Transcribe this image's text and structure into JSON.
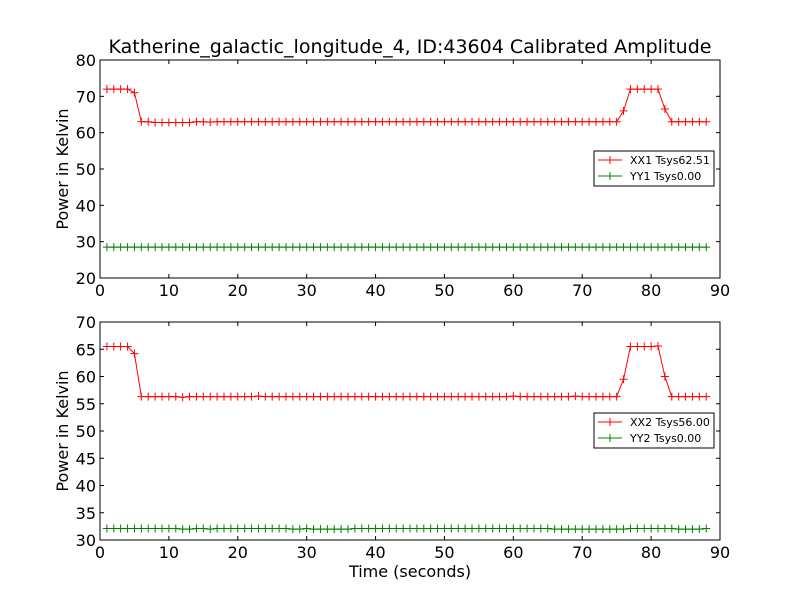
{
  "chart_data": [
    {
      "type": "line",
      "title": "Katherine_galactic_longitude_4, ID:43604 Calibrated Amplitude",
      "xlabel": "",
      "ylabel": "Power in Kelvin",
      "xlim": [
        0,
        90
      ],
      "ylim": [
        20,
        80
      ],
      "xticks": [
        0,
        10,
        20,
        30,
        40,
        50,
        60,
        70,
        80,
        90
      ],
      "yticks": [
        20,
        30,
        40,
        50,
        60,
        70,
        80
      ],
      "grid": false,
      "legend_position": "right",
      "series": [
        {
          "name": "XX1 Tsys62.51",
          "color": "#ff0000",
          "marker": "+",
          "x": [
            1,
            2,
            3,
            4,
            5,
            6,
            7,
            8,
            9,
            10,
            11,
            12,
            13,
            14,
            15,
            16,
            17,
            18,
            19,
            20,
            21,
            22,
            23,
            24,
            25,
            26,
            27,
            28,
            29,
            30,
            31,
            32,
            33,
            34,
            35,
            36,
            37,
            38,
            39,
            40,
            41,
            42,
            43,
            44,
            45,
            46,
            47,
            48,
            49,
            50,
            51,
            52,
            53,
            54,
            55,
            56,
            57,
            58,
            59,
            60,
            61,
            62,
            63,
            64,
            65,
            66,
            67,
            68,
            69,
            70,
            71,
            72,
            73,
            74,
            75,
            76,
            77,
            78,
            79,
            80,
            81,
            82,
            83,
            84,
            85,
            86,
            87,
            88
          ],
          "y": [
            72,
            72,
            72,
            72,
            71,
            63,
            63,
            62.8,
            62.8,
            62.8,
            62.8,
            62.8,
            62.8,
            63,
            63,
            62.9,
            63,
            63,
            63,
            63,
            63,
            63,
            63,
            63,
            63,
            63,
            63,
            63,
            63,
            63,
            63,
            63,
            63,
            63,
            63,
            63,
            63,
            63,
            63,
            63,
            63,
            63,
            63,
            63,
            63,
            63,
            63,
            63,
            63,
            63,
            63,
            63,
            63,
            63,
            63,
            63,
            63,
            63,
            63,
            63,
            63,
            63,
            63,
            63,
            63,
            63,
            63,
            63,
            63,
            63,
            63,
            63,
            63,
            63,
            63,
            66,
            72,
            72,
            72,
            72,
            72,
            66.5,
            63,
            63,
            63,
            63,
            63,
            63
          ]
        },
        {
          "name": "YY1 Tsys0.00",
          "color": "#008000",
          "marker": "+",
          "x": [
            1,
            2,
            3,
            4,
            5,
            6,
            7,
            8,
            9,
            10,
            11,
            12,
            13,
            14,
            15,
            16,
            17,
            18,
            19,
            20,
            21,
            22,
            23,
            24,
            25,
            26,
            27,
            28,
            29,
            30,
            31,
            32,
            33,
            34,
            35,
            36,
            37,
            38,
            39,
            40,
            41,
            42,
            43,
            44,
            45,
            46,
            47,
            48,
            49,
            50,
            51,
            52,
            53,
            54,
            55,
            56,
            57,
            58,
            59,
            60,
            61,
            62,
            63,
            64,
            65,
            66,
            67,
            68,
            69,
            70,
            71,
            72,
            73,
            74,
            75,
            76,
            77,
            78,
            79,
            80,
            81,
            82,
            83,
            84,
            85,
            86,
            87,
            88
          ],
          "y": [
            28.5,
            28.5,
            28.5,
            28.5,
            28.5,
            28.5,
            28.5,
            28.5,
            28.5,
            28.5,
            28.5,
            28.5,
            28.5,
            28.5,
            28.5,
            28.5,
            28.5,
            28.5,
            28.5,
            28.5,
            28.5,
            28.5,
            28.5,
            28.5,
            28.5,
            28.5,
            28.5,
            28.5,
            28.5,
            28.5,
            28.5,
            28.5,
            28.5,
            28.5,
            28.5,
            28.5,
            28.5,
            28.5,
            28.5,
            28.5,
            28.5,
            28.5,
            28.5,
            28.5,
            28.5,
            28.5,
            28.5,
            28.5,
            28.5,
            28.5,
            28.5,
            28.5,
            28.5,
            28.5,
            28.5,
            28.5,
            28.5,
            28.5,
            28.5,
            28.5,
            28.5,
            28.5,
            28.5,
            28.5,
            28.5,
            28.5,
            28.5,
            28.5,
            28.5,
            28.5,
            28.5,
            28.5,
            28.5,
            28.5,
            28.5,
            28.5,
            28.5,
            28.5,
            28.5,
            28.5,
            28.5,
            28.5,
            28.5,
            28.5,
            28.5,
            28.5,
            28.5,
            28.5
          ]
        }
      ]
    },
    {
      "type": "line",
      "title": "",
      "xlabel": "Time (seconds)",
      "ylabel": "Power in Kelvin",
      "xlim": [
        0,
        90
      ],
      "ylim": [
        30,
        70
      ],
      "xticks": [
        0,
        10,
        20,
        30,
        40,
        50,
        60,
        70,
        80,
        90
      ],
      "yticks": [
        30,
        35,
        40,
        45,
        50,
        55,
        60,
        65,
        70
      ],
      "grid": false,
      "legend_position": "right",
      "series": [
        {
          "name": "XX2 Tsys56.00",
          "color": "#ff0000",
          "marker": "+",
          "x": [
            1,
            2,
            3,
            4,
            5,
            6,
            7,
            8,
            9,
            10,
            11,
            12,
            13,
            14,
            15,
            16,
            17,
            18,
            19,
            20,
            21,
            22,
            23,
            24,
            25,
            26,
            27,
            28,
            29,
            30,
            31,
            32,
            33,
            34,
            35,
            36,
            37,
            38,
            39,
            40,
            41,
            42,
            43,
            44,
            45,
            46,
            47,
            48,
            49,
            50,
            51,
            52,
            53,
            54,
            55,
            56,
            57,
            58,
            59,
            60,
            61,
            62,
            63,
            64,
            65,
            66,
            67,
            68,
            69,
            70,
            71,
            72,
            73,
            74,
            75,
            76,
            77,
            78,
            79,
            80,
            81,
            82,
            83,
            84,
            85,
            86,
            87,
            88
          ],
          "y": [
            65.5,
            65.5,
            65.5,
            65.5,
            64.2,
            56.3,
            56.3,
            56.3,
            56.3,
            56.3,
            56.3,
            56.2,
            56.3,
            56.3,
            56.3,
            56.3,
            56.3,
            56.3,
            56.3,
            56.3,
            56.3,
            56.3,
            56.4,
            56.3,
            56.3,
            56.3,
            56.3,
            56.3,
            56.3,
            56.3,
            56.3,
            56.3,
            56.3,
            56.3,
            56.3,
            56.3,
            56.3,
            56.3,
            56.3,
            56.3,
            56.3,
            56.3,
            56.3,
            56.3,
            56.3,
            56.3,
            56.3,
            56.3,
            56.3,
            56.3,
            56.3,
            56.3,
            56.3,
            56.3,
            56.3,
            56.3,
            56.3,
            56.3,
            56.3,
            56.4,
            56.3,
            56.3,
            56.3,
            56.3,
            56.3,
            56.3,
            56.3,
            56.3,
            56.4,
            56.3,
            56.3,
            56.3,
            56.3,
            56.3,
            56.3,
            59.5,
            65.5,
            65.5,
            65.5,
            65.5,
            65.6,
            60,
            56.3,
            56.3,
            56.3,
            56.3,
            56.3,
            56.3
          ]
        },
        {
          "name": "YY2 Tsys0.00",
          "color": "#008000",
          "marker": "+",
          "x": [
            1,
            2,
            3,
            4,
            5,
            6,
            7,
            8,
            9,
            10,
            11,
            12,
            13,
            14,
            15,
            16,
            17,
            18,
            19,
            20,
            21,
            22,
            23,
            24,
            25,
            26,
            27,
            28,
            29,
            30,
            31,
            32,
            33,
            34,
            35,
            36,
            37,
            38,
            39,
            40,
            41,
            42,
            43,
            44,
            45,
            46,
            47,
            48,
            49,
            50,
            51,
            52,
            53,
            54,
            55,
            56,
            57,
            58,
            59,
            60,
            61,
            62,
            63,
            64,
            65,
            66,
            67,
            68,
            69,
            70,
            71,
            72,
            73,
            74,
            75,
            76,
            77,
            78,
            79,
            80,
            81,
            82,
            83,
            84,
            85,
            86,
            87,
            88
          ],
          "y": [
            32.1,
            32.1,
            32.1,
            32.1,
            32.1,
            32.1,
            32.1,
            32.1,
            32.1,
            32.1,
            32.1,
            32,
            32,
            32.1,
            32.1,
            32,
            32.1,
            32.1,
            32.1,
            32.1,
            32.1,
            32.1,
            32.1,
            32.1,
            32.1,
            32.1,
            32.1,
            32,
            32,
            32.1,
            32,
            32,
            32,
            32,
            32,
            32,
            32.1,
            32.1,
            32.1,
            32.1,
            32.1,
            32.1,
            32.1,
            32.1,
            32.1,
            32.1,
            32.1,
            32.1,
            32.1,
            32.1,
            32.1,
            32.1,
            32.1,
            32.1,
            32.1,
            32.1,
            32.1,
            32.1,
            32.1,
            32.1,
            32.1,
            32.1,
            32.1,
            32.1,
            32.1,
            32,
            32,
            32,
            32,
            32,
            32,
            32,
            32,
            32,
            32,
            32,
            32.1,
            32.1,
            32.1,
            32.1,
            32.1,
            32.1,
            32.1,
            32,
            32,
            32,
            32,
            32.1
          ]
        }
      ]
    }
  ]
}
